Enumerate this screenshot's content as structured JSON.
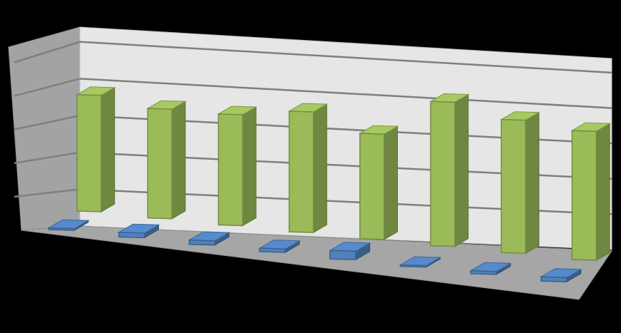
{
  "chart_data": {
    "type": "bar",
    "categories": [
      "",
      "",
      "",
      "",
      "",
      "",
      "",
      ""
    ],
    "series": [
      {
        "values": [
          0.18,
          0.5,
          0.46,
          0.37,
          0.92,
          0.02,
          0.32,
          0.46
        ],
        "color": "#4f81bd"
      },
      {
        "values": [
          4.2,
          3.95,
          4.0,
          4.35,
          3.8,
          5.2,
          4.8,
          4.65
        ],
        "color": "#9bbb59"
      }
    ],
    "ylim": [
      0,
      5.4
    ],
    "grid": true,
    "legend": "none"
  }
}
